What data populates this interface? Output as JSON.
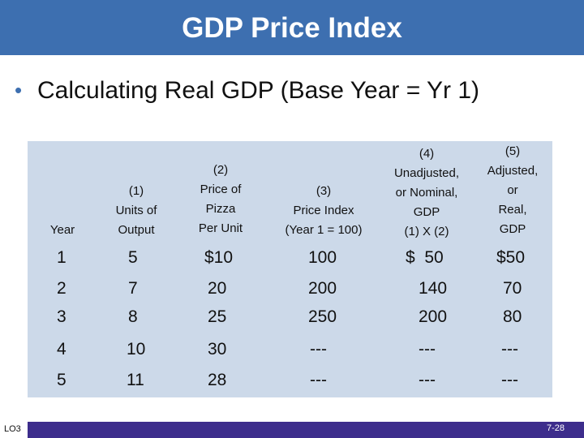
{
  "title": "GDP Price Index",
  "bullet": "Calculating Real GDP (Base Year = Yr 1)",
  "table": {
    "headers": [
      "Year",
      "(1)\nUnits of\nOutput",
      "(2)\nPrice of\nPizza\nPer Unit",
      "(3)\nPrice Index\n(Year 1 = 100)",
      "(4)\nUnadjusted,\nor Nominal,\nGDP\n(1) X (2)",
      "(5)\nAdjusted,\nor\nReal,\nGDP"
    ],
    "rows": [
      [
        "1",
        "5",
        "$10",
        "100",
        "$  50",
        "$50"
      ],
      [
        "2",
        "7",
        "20",
        "200",
        "140",
        "70"
      ],
      [
        "3",
        "8",
        "25",
        "250",
        "200",
        "80"
      ],
      [
        "4",
        "10",
        "30",
        "---",
        "---",
        "---"
      ],
      [
        "5",
        "11",
        "28",
        "---",
        "---",
        "---"
      ]
    ]
  },
  "footer": {
    "lo": "LO3",
    "page": "7-28"
  },
  "colors": {
    "title_bar": "#3d6fb0",
    "table_bg": "#ccd9e9",
    "footer_bar": "#3d2d8c"
  }
}
